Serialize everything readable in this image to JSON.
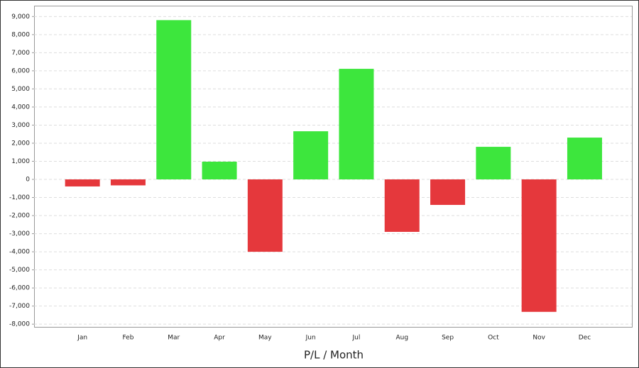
{
  "chart_data": {
    "type": "bar",
    "xlabel": "P/L / Month",
    "categories": [
      "Jan",
      "Feb",
      "Mar",
      "Apr",
      "May",
      "Jun",
      "Jul",
      "Aug",
      "Sep",
      "Oct",
      "Nov",
      "Dec"
    ],
    "values": [
      -390,
      -330,
      8800,
      980,
      -4000,
      2660,
      6110,
      -2900,
      -1410,
      1800,
      -7320,
      2310
    ],
    "positive_color": "#3de63d",
    "negative_color": "#e5383c",
    "ylim": [
      -8150,
      9600
    ],
    "yticks": [
      {
        "value": -8000,
        "label": "-8,000"
      },
      {
        "value": -7000,
        "label": "-7,000"
      },
      {
        "value": -6000,
        "label": "-6,000"
      },
      {
        "value": -5000,
        "label": "-5,000"
      },
      {
        "value": -4000,
        "label": "-4,000"
      },
      {
        "value": -3000,
        "label": "-3,000"
      },
      {
        "value": -2000,
        "label": "-2,000"
      },
      {
        "value": -1000,
        "label": "-1,000"
      },
      0,
      {
        "value": 1000,
        "label": "1,000"
      },
      {
        "value": 2000,
        "label": "2,000"
      },
      {
        "value": 3000,
        "label": "3,000"
      },
      {
        "value": 4000,
        "label": "4,000"
      },
      {
        "value": 5000,
        "label": "5,000"
      },
      {
        "value": 6000,
        "label": "6,000"
      },
      {
        "value": 7000,
        "label": "7,000"
      },
      {
        "value": 8000,
        "label": "8,000"
      },
      {
        "value": 9000,
        "label": "9,000"
      }
    ],
    "grid": true
  }
}
